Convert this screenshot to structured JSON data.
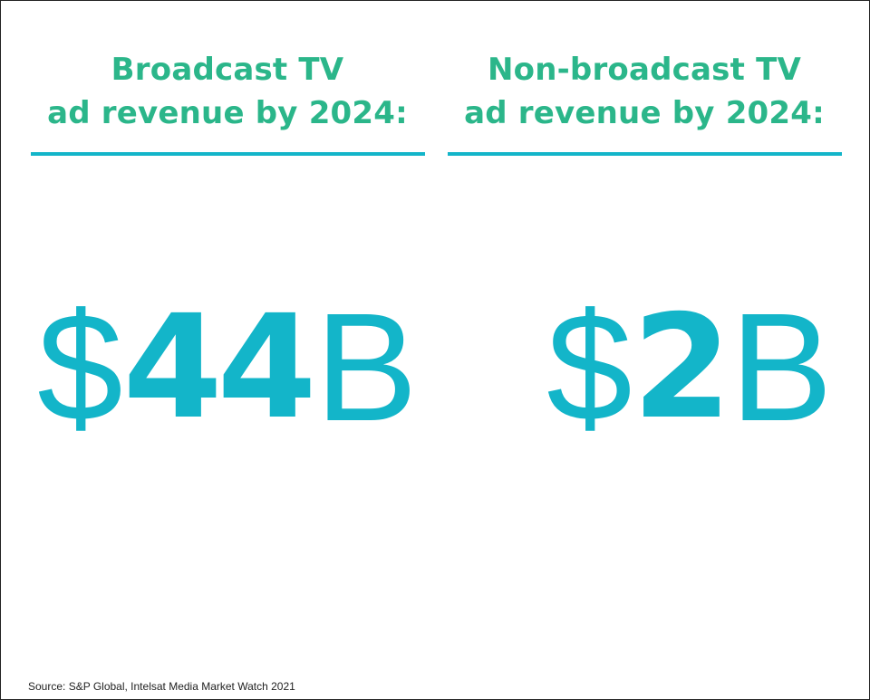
{
  "panels": [
    {
      "title_line1": "Broadcast TV",
      "title_line2": "ad revenue by 2024:",
      "value_currency": "$",
      "value_number": "44",
      "value_unit": "B"
    },
    {
      "title_line1": "Non-broadcast TV",
      "title_line2": "ad revenue by 2024:",
      "value_currency": "$",
      "value_number": "2",
      "value_unit": "B"
    }
  ],
  "source": "Source: S&P Global, Intelsat Media Market Watch 2021",
  "colors": {
    "title": "#2bb68a",
    "accent": "#13b5c9",
    "text": "#222222",
    "border": "#222222"
  }
}
